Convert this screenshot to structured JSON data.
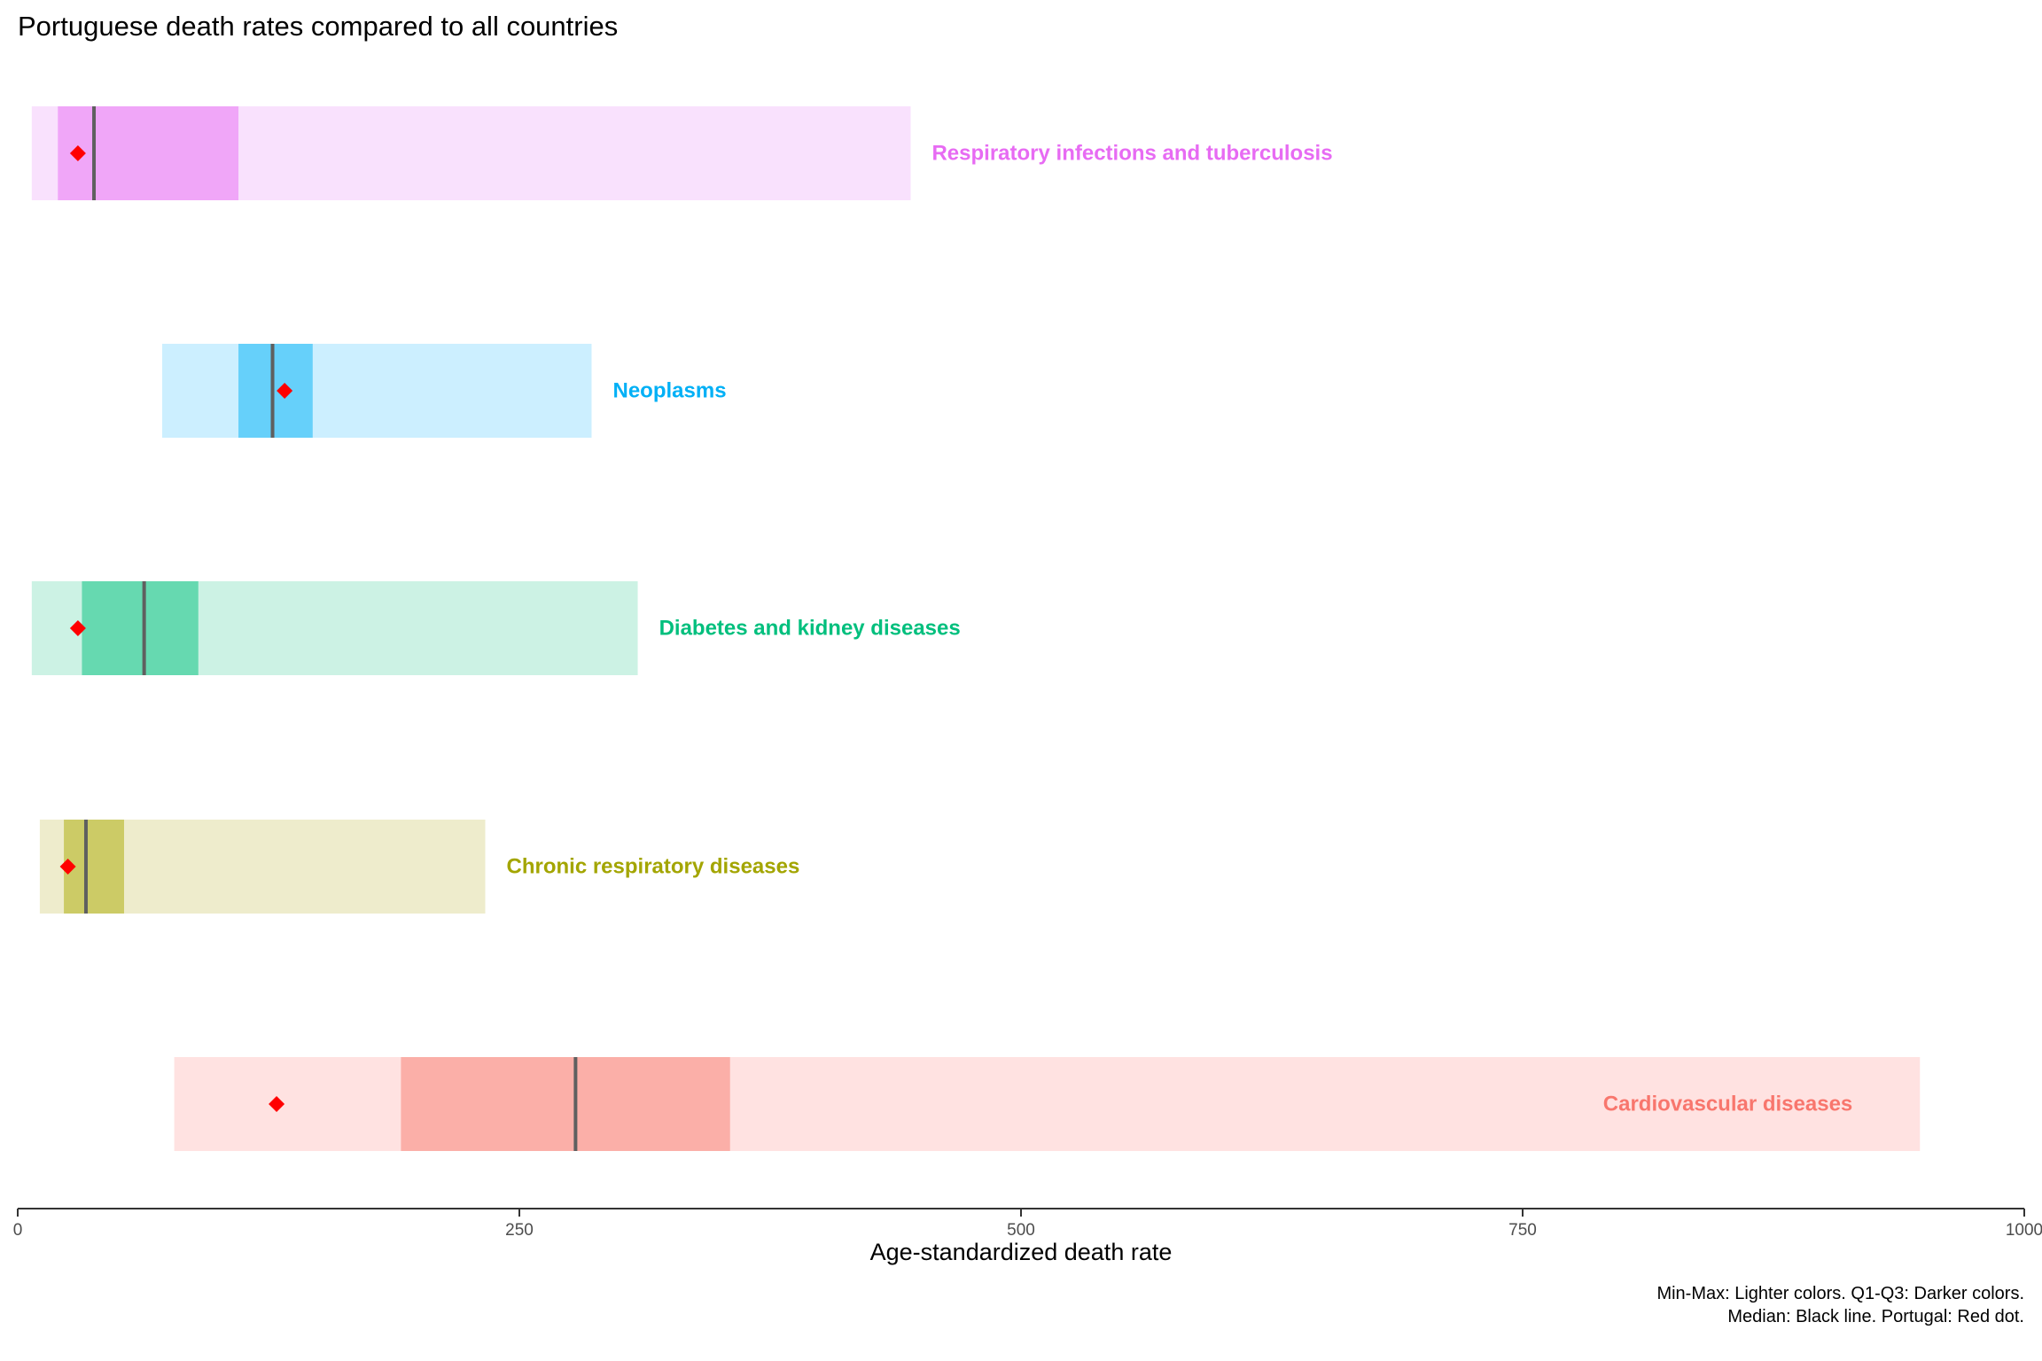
{
  "chart_data": {
    "type": "bar",
    "title": "Portuguese death rates compared to all countries",
    "xlabel": "Age-standardized death rate",
    "ylabel": "",
    "xlim": [
      0,
      1000
    ],
    "xticks": [
      0,
      250,
      500,
      750,
      1000
    ],
    "xtick_labels": [
      "0",
      "250",
      "500",
      "750",
      "1000"
    ],
    "grid": false,
    "caption": [
      "Min-Max: Lighter colors. Q1-Q3: Darker colors.",
      "Median: Black line. Portugal: Red dot."
    ],
    "series": [
      {
        "name": "Respiratory infections and tuberculosis",
        "min": 7,
        "q1": 20,
        "median": 38,
        "q3": 110,
        "max": 445,
        "portugal": 30,
        "light_color": "#f9e1fd",
        "dark_color": "#f0a6f8",
        "label_color": "#e76bf3",
        "label_position": "right"
      },
      {
        "name": "Neoplasms",
        "min": 72,
        "q1": 110,
        "median": 127,
        "q3": 147,
        "max": 286,
        "portugal": 133,
        "light_color": "#ccefff",
        "dark_color": "#66d0fa",
        "label_color": "#00b0f6",
        "label_position": "right"
      },
      {
        "name": "Diabetes and kidney diseases",
        "min": 7,
        "q1": 32,
        "median": 63,
        "q3": 90,
        "max": 309,
        "portugal": 30,
        "light_color": "#ccf2e4",
        "dark_color": "#66d9b0",
        "label_color": "#00bf7d",
        "label_position": "right"
      },
      {
        "name": "Chronic respiratory diseases",
        "min": 11,
        "q1": 23,
        "median": 34,
        "q3": 53,
        "max": 233,
        "portugal": 25,
        "light_color": "#eeeccc",
        "dark_color": "#cccb66",
        "label_color": "#a3a500",
        "label_position": "right"
      },
      {
        "name": "Cardiovascular diseases",
        "min": 78,
        "q1": 191,
        "median": 278,
        "q3": 355,
        "max": 948,
        "portugal": 129,
        "light_color": "#ffe2e1",
        "dark_color": "#fbafa8",
        "label_color": "#f8766d",
        "label_position": "inside-right"
      }
    ],
    "median_color": "#5f5f5f",
    "portugal_color": "#ff0000"
  }
}
